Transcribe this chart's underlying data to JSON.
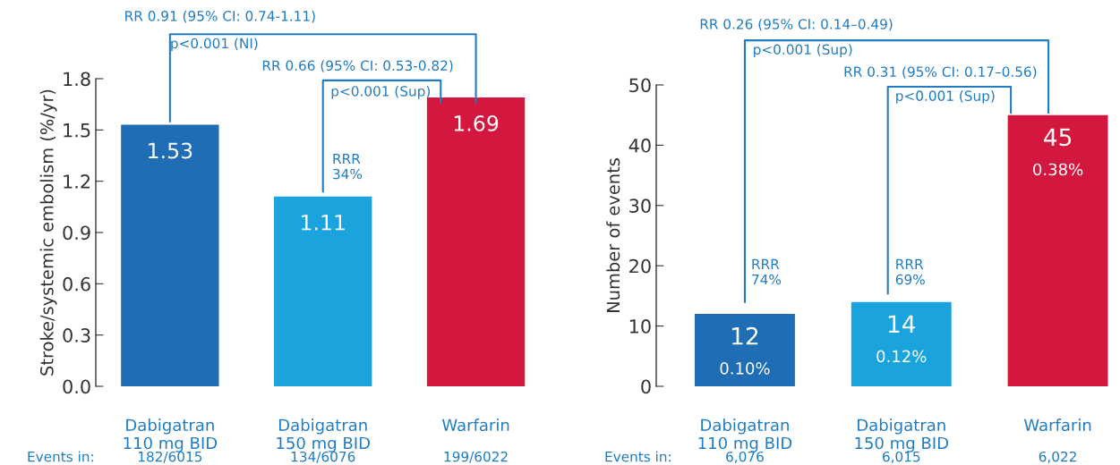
{
  "chart_data": [
    {
      "type": "bar",
      "ylabel": "Stroke/systemic embolism (%/yr)",
      "categories": [
        "Dabigatran\n110 mg BID",
        "Dabigatran\n150 mg BID",
        "Warfarin"
      ],
      "values": [
        1.53,
        1.11,
        1.69
      ],
      "colors": [
        "#1e6db5",
        "#1aa3dc",
        "#d3173e"
      ],
      "data_labels": true,
      "ylim": [
        0,
        1.8
      ],
      "yticks": [
        {
          "value": 0,
          "label": "0.0"
        },
        0.3,
        0.6,
        0.9,
        1.2,
        1.5,
        1.8
      ],
      "grid": false,
      "legend": false,
      "annotations": [
        "RR 0.91 (95% CI: 0.74-1.11)",
        "p<0.001 (NI)",
        "RR 0.66 (95% CI: 0.53-0.82)",
        "p<0.001 (Sup)",
        "RRR\n34%",
        "Events in:",
        "182/6015",
        "134/6076",
        "199/6022"
      ]
    },
    {
      "type": "bar",
      "ylabel": "Number of events",
      "categories": [
        "Dabigatran\n110 mg BID",
        "Dabigatran\n150 mg BID",
        "Warfarin"
      ],
      "values": [
        12,
        14,
        45
      ],
      "colors": [
        "#1e6db5",
        "#1aa3dc",
        "#d3173e"
      ],
      "value_labels": [
        "12\n0.10%",
        "14\n0.12%",
        "45\n0.38%"
      ],
      "ylim": [
        0,
        50
      ],
      "yticks": [
        0,
        10,
        20,
        30,
        40,
        50
      ],
      "grid": false,
      "legend": false,
      "annotations": [
        "RR 0.26 (95% CI: 0.14–0.49)",
        "p<0.001 (Sup)",
        "RR 0.31 (95% CI: 0.17–0.56)",
        "p<0.001 (Sup)",
        "RRR\n74%",
        "RRR\n69%",
        "Events in:",
        "6,076",
        "6,015",
        "6,022"
      ]
    }
  ]
}
